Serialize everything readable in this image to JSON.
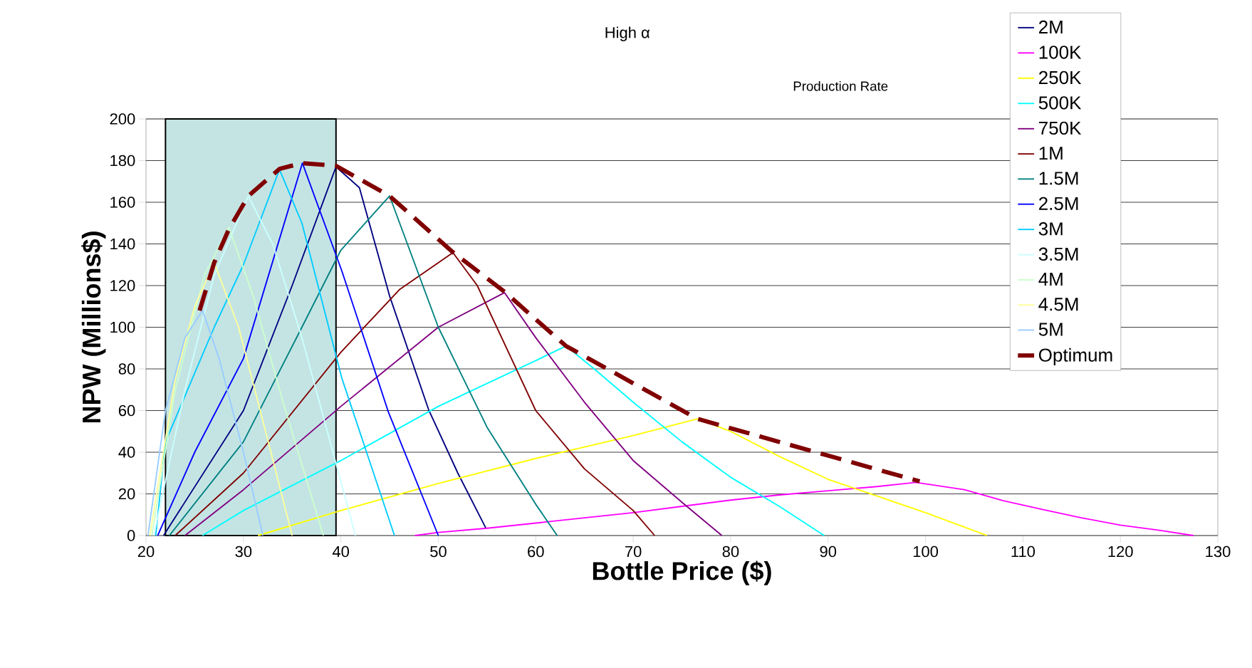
{
  "chart_data": {
    "type": "line",
    "title": "High α",
    "legend_title": "Production Rate",
    "xlabel": "Bottle Price ($)",
    "ylabel": "NPW (Millions$)",
    "xlim": [
      20,
      130
    ],
    "xticks": [
      20,
      30,
      40,
      50,
      60,
      70,
      80,
      90,
      100,
      110,
      120,
      130
    ],
    "ylim": [
      0,
      200
    ],
    "yticks": [
      0,
      20,
      40,
      60,
      80,
      100,
      120,
      140,
      160,
      180,
      200
    ],
    "grid": "y",
    "legend": "top right",
    "marker": "none",
    "bands": [
      {
        "axis": "x",
        "from": 22,
        "to": 39.5,
        "color": "#c4e4e4"
      }
    ],
    "series": [
      {
        "name": "2M",
        "color": "#000080",
        "x": [
          21.8,
          30,
          35,
          39.5,
          41.9,
          45,
          49,
          52,
          54.9
        ],
        "values": [
          0,
          60,
          120,
          177,
          167,
          115,
          60.5,
          30,
          3.4
        ]
      },
      {
        "name": "100K",
        "color": "#ff00ff",
        "x": [
          47.6,
          50,
          55,
          60,
          65,
          70,
          75,
          80,
          85,
          90,
          95,
          99,
          104,
          108,
          112,
          116,
          120,
          124,
          127.5
        ],
        "values": [
          0,
          1.5,
          3.5,
          6,
          8.5,
          11,
          14,
          17,
          19.5,
          21.5,
          23.5,
          25.5,
          22,
          16.7,
          12.5,
          8.5,
          5,
          2.5,
          0
        ]
      },
      {
        "name": "250K",
        "color": "#ffff00",
        "x": [
          31.5,
          40,
          50,
          60,
          70,
          76.6,
          80,
          85,
          90,
          95,
          100,
          106.3
        ],
        "values": [
          0,
          12,
          25,
          37,
          48,
          56,
          50,
          38,
          27,
          19,
          11,
          0
        ]
      },
      {
        "name": "500K",
        "color": "#00ffff",
        "x": [
          25.8,
          30,
          40,
          50,
          60,
          63.1,
          66,
          70,
          75,
          80,
          85,
          89.6
        ],
        "values": [
          0,
          12,
          36,
          62,
          84,
          91,
          80,
          64,
          45,
          28,
          14,
          0
        ]
      },
      {
        "name": "750K",
        "color": "#800080",
        "x": [
          24,
          30,
          40,
          50,
          56.8,
          60,
          65,
          70,
          75,
          79.1
        ],
        "values": [
          0,
          22,
          62,
          100,
          116.6,
          95,
          64,
          36,
          16,
          0
        ]
      },
      {
        "name": "1M",
        "color": "#800000",
        "x": [
          23,
          30,
          40,
          46,
          51.5,
          54,
          60,
          65,
          70,
          72.2
        ],
        "values": [
          0,
          30,
          88,
          118,
          135.8,
          120,
          60,
          32,
          12,
          0
        ]
      },
      {
        "name": "1.5M",
        "color": "#008080",
        "x": [
          22.4,
          30,
          36,
          40,
          45,
          50,
          55,
          60,
          62.2
        ],
        "values": [
          0,
          45,
          100,
          137,
          163,
          100,
          52,
          15,
          0
        ]
      },
      {
        "name": "2.5M",
        "color": "#0000ff",
        "x": [
          21.2,
          25,
          30,
          36.05,
          40.1,
          44.9,
          50
        ],
        "values": [
          0,
          40,
          85,
          178.8,
          127,
          59,
          0
        ]
      },
      {
        "name": "3M",
        "color": "#00ccff",
        "x": [
          21,
          22,
          27,
          30,
          33.7,
          36,
          40.1,
          45.5
        ],
        "values": [
          0,
          45,
          100,
          130,
          175.7,
          150,
          75.5,
          0
        ]
      },
      {
        "name": "3.5M",
        "color": "#ccffff",
        "x": [
          20.8,
          24,
          27,
          30.5,
          33,
          36,
          41.5
        ],
        "values": [
          0,
          70,
          125,
          163,
          140,
          95,
          0
        ]
      },
      {
        "name": "4M",
        "color": "#ccffcc",
        "x": [
          20.6,
          23,
          26,
          28.5,
          31,
          34,
          38.2
        ],
        "values": [
          0,
          70,
          125,
          148,
          115,
          65,
          0
        ]
      },
      {
        "name": "4.5M",
        "color": "#ffff99",
        "x": [
          20.4,
          23,
          25,
          27,
          29.5,
          32,
          35
        ],
        "values": [
          0,
          75,
          110,
          131,
          100,
          55,
          0
        ]
      },
      {
        "name": "5M",
        "color": "#99ccff",
        "x": [
          20.2,
          22,
          24,
          25.8,
          27.5,
          30,
          32
        ],
        "values": [
          0,
          60,
          95,
          108,
          85,
          40,
          0
        ]
      },
      {
        "name": "Optimum",
        "color": "#800000",
        "line_style": "dashed",
        "x": [
          25.5,
          27,
          28.5,
          30.5,
          33.7,
          36,
          39.5,
          45,
          51.5,
          56.8,
          63.1,
          76.6,
          99.4
        ],
        "values": [
          108,
          131,
          147,
          163,
          176,
          178.8,
          177.5,
          163,
          136,
          117,
          91,
          56,
          26
        ]
      }
    ]
  }
}
